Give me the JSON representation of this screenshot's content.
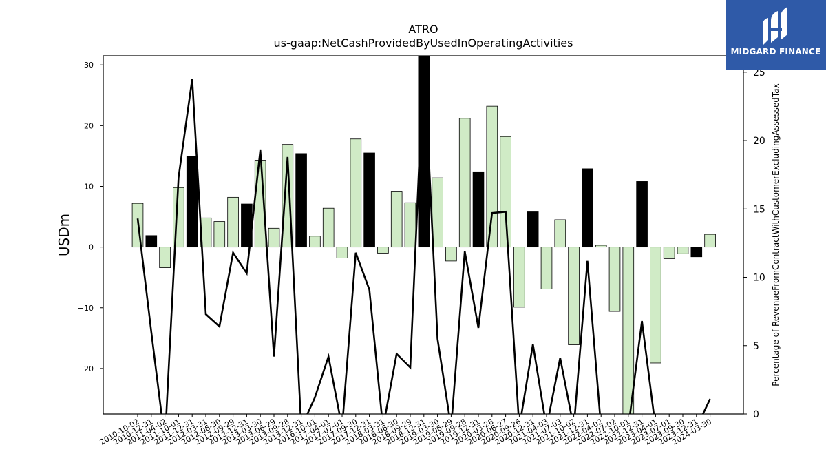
{
  "chart_data": {
    "type": "bar+line",
    "title": "ATRO",
    "subtitle": "us-gaap:NetCashProvidedByUsedInOperatingActivities",
    "ylabel": "USDm",
    "ylabel_right": "Percentage of RevenueFromContractWithCustomerExcludingAssessedTax",
    "ylim": [
      -27.5,
      31.5
    ],
    "ylim_right": [
      0,
      26.2
    ],
    "yticks": [
      -20,
      -10,
      0,
      10,
      20,
      30
    ],
    "yticks_right": [
      0,
      5,
      10,
      15,
      20,
      25
    ],
    "categories": [
      "2010-10-02",
      "2010-12-31",
      "2011-04-02",
      "2011-10-01",
      "2011-12-31",
      "2012-03-31",
      "2012-06-30",
      "2012-09-29",
      "2012-12-31",
      "2013-03-30",
      "2013-06-29",
      "2013-09-28",
      "2013-12-31",
      "2016-10-01",
      "2017-04-01",
      "2017-07-01",
      "2017-09-30",
      "2017-12-31",
      "2018-03-31",
      "2018-06-30",
      "2018-09-29",
      "2018-12-31",
      "2019-03-30",
      "2019-06-29",
      "2019-09-28",
      "2019-12-31",
      "2020-03-28",
      "2020-06-27",
      "2020-09-26",
      "2020-12-31",
      "2021-04-03",
      "2021-07-03",
      "2021-10-02",
      "2021-12-31",
      "2022-04-02",
      "2022-07-02",
      "2022-10-01",
      "2022-12-31",
      "2023-04-01",
      "2023-07-01",
      "2023-09-30",
      "2023-12-31",
      "2024-03-30"
    ],
    "series": [
      {
        "values": [
          7.2,
          1.9,
          -3.4,
          9.8,
          14.9,
          4.8,
          4.2,
          8.2,
          7.1,
          14.3,
          3.1,
          16.9,
          15.4,
          1.8,
          6.4,
          -1.8,
          17.8,
          15.5,
          -1.0,
          9.2,
          7.3,
          31.5,
          11.4,
          -2.3,
          21.2,
          12.4,
          23.2,
          18.2,
          -9.9,
          5.8,
          -6.9,
          4.5,
          -16.1,
          12.9,
          0.3,
          -10.6,
          -27.5,
          10.8,
          -19.1,
          -1.9,
          -1.1,
          -1.6,
          2.1
        ],
        "colors": [
          "#d0ebc6",
          "#000000",
          "#d0ebc6",
          "#d0ebc6",
          "#000000",
          "#d0ebc6",
          "#d0ebc6",
          "#d0ebc6",
          "#000000",
          "#d0ebc6",
          "#d0ebc6",
          "#d0ebc6",
          "#000000",
          "#d0ebc6",
          "#d0ebc6",
          "#d0ebc6",
          "#d0ebc6",
          "#000000",
          "#d0ebc6",
          "#d0ebc6",
          "#d0ebc6",
          "#000000",
          "#d0ebc6",
          "#d0ebc6",
          "#d0ebc6",
          "#000000",
          "#d0ebc6",
          "#d0ebc6",
          "#d0ebc6",
          "#000000",
          "#d0ebc6",
          "#d0ebc6",
          "#d0ebc6",
          "#000000",
          "#d0ebc6",
          "#d0ebc6",
          "#d0ebc6",
          "#000000",
          "#d0ebc6",
          "#d0ebc6",
          "#d0ebc6",
          "#000000",
          "#d0ebc6"
        ]
      },
      {
        "axis": "right",
        "values": [
          14.3,
          6.0,
          -2.0,
          17.3,
          24.5,
          7.3,
          6.4,
          11.8,
          10.3,
          19.3,
          4.2,
          18.8,
          -1.0,
          1.2,
          4.2,
          -1.0,
          11.8,
          9.1,
          -1.0,
          4.4,
          3.4,
          26.2,
          5.5,
          -1.0,
          11.9,
          6.3,
          14.7,
          14.8,
          -1.0,
          5.1,
          -1.0,
          4.1,
          -1.0,
          11.2,
          -1.0,
          -1.0,
          -1.0,
          6.8,
          -1.0,
          -1.0,
          -1.0,
          -1.0,
          1.1
        ],
        "color": "#000000"
      }
    ]
  },
  "brand": {
    "name": "MIDGARD FINANCE",
    "color": "#2f5aa8"
  }
}
